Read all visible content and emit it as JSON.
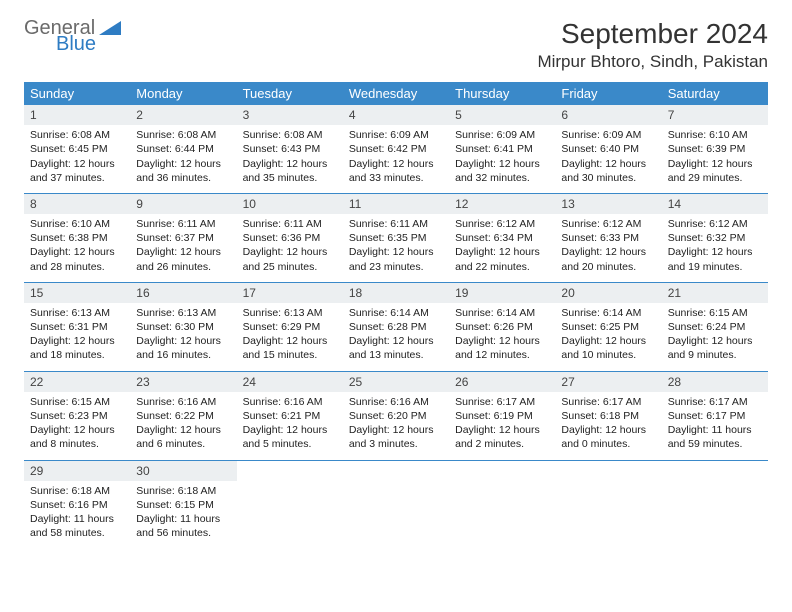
{
  "logo": {
    "text1": "General",
    "text2": "Blue"
  },
  "title": "September 2024",
  "location": "Mirpur Bhtoro, Sindh, Pakistan",
  "colors": {
    "header_bg": "#3a89c9",
    "header_fg": "#ffffff",
    "daynum_bg": "#eceff1",
    "rule": "#3a89c9",
    "logo_gray": "#6a6a6a",
    "logo_blue": "#2e7cc3"
  },
  "weekdays": [
    "Sunday",
    "Monday",
    "Tuesday",
    "Wednesday",
    "Thursday",
    "Friday",
    "Saturday"
  ],
  "weeks": [
    [
      {
        "n": "1",
        "sunrise": "6:08 AM",
        "sunset": "6:45 PM",
        "daylight": "12 hours and 37 minutes."
      },
      {
        "n": "2",
        "sunrise": "6:08 AM",
        "sunset": "6:44 PM",
        "daylight": "12 hours and 36 minutes."
      },
      {
        "n": "3",
        "sunrise": "6:08 AM",
        "sunset": "6:43 PM",
        "daylight": "12 hours and 35 minutes."
      },
      {
        "n": "4",
        "sunrise": "6:09 AM",
        "sunset": "6:42 PM",
        "daylight": "12 hours and 33 minutes."
      },
      {
        "n": "5",
        "sunrise": "6:09 AM",
        "sunset": "6:41 PM",
        "daylight": "12 hours and 32 minutes."
      },
      {
        "n": "6",
        "sunrise": "6:09 AM",
        "sunset": "6:40 PM",
        "daylight": "12 hours and 30 minutes."
      },
      {
        "n": "7",
        "sunrise": "6:10 AM",
        "sunset": "6:39 PM",
        "daylight": "12 hours and 29 minutes."
      }
    ],
    [
      {
        "n": "8",
        "sunrise": "6:10 AM",
        "sunset": "6:38 PM",
        "daylight": "12 hours and 28 minutes."
      },
      {
        "n": "9",
        "sunrise": "6:11 AM",
        "sunset": "6:37 PM",
        "daylight": "12 hours and 26 minutes."
      },
      {
        "n": "10",
        "sunrise": "6:11 AM",
        "sunset": "6:36 PM",
        "daylight": "12 hours and 25 minutes."
      },
      {
        "n": "11",
        "sunrise": "6:11 AM",
        "sunset": "6:35 PM",
        "daylight": "12 hours and 23 minutes."
      },
      {
        "n": "12",
        "sunrise": "6:12 AM",
        "sunset": "6:34 PM",
        "daylight": "12 hours and 22 minutes."
      },
      {
        "n": "13",
        "sunrise": "6:12 AM",
        "sunset": "6:33 PM",
        "daylight": "12 hours and 20 minutes."
      },
      {
        "n": "14",
        "sunrise": "6:12 AM",
        "sunset": "6:32 PM",
        "daylight": "12 hours and 19 minutes."
      }
    ],
    [
      {
        "n": "15",
        "sunrise": "6:13 AM",
        "sunset": "6:31 PM",
        "daylight": "12 hours and 18 minutes."
      },
      {
        "n": "16",
        "sunrise": "6:13 AM",
        "sunset": "6:30 PM",
        "daylight": "12 hours and 16 minutes."
      },
      {
        "n": "17",
        "sunrise": "6:13 AM",
        "sunset": "6:29 PM",
        "daylight": "12 hours and 15 minutes."
      },
      {
        "n": "18",
        "sunrise": "6:14 AM",
        "sunset": "6:28 PM",
        "daylight": "12 hours and 13 minutes."
      },
      {
        "n": "19",
        "sunrise": "6:14 AM",
        "sunset": "6:26 PM",
        "daylight": "12 hours and 12 minutes."
      },
      {
        "n": "20",
        "sunrise": "6:14 AM",
        "sunset": "6:25 PM",
        "daylight": "12 hours and 10 minutes."
      },
      {
        "n": "21",
        "sunrise": "6:15 AM",
        "sunset": "6:24 PM",
        "daylight": "12 hours and 9 minutes."
      }
    ],
    [
      {
        "n": "22",
        "sunrise": "6:15 AM",
        "sunset": "6:23 PM",
        "daylight": "12 hours and 8 minutes."
      },
      {
        "n": "23",
        "sunrise": "6:16 AM",
        "sunset": "6:22 PM",
        "daylight": "12 hours and 6 minutes."
      },
      {
        "n": "24",
        "sunrise": "6:16 AM",
        "sunset": "6:21 PM",
        "daylight": "12 hours and 5 minutes."
      },
      {
        "n": "25",
        "sunrise": "6:16 AM",
        "sunset": "6:20 PM",
        "daylight": "12 hours and 3 minutes."
      },
      {
        "n": "26",
        "sunrise": "6:17 AM",
        "sunset": "6:19 PM",
        "daylight": "12 hours and 2 minutes."
      },
      {
        "n": "27",
        "sunrise": "6:17 AM",
        "sunset": "6:18 PM",
        "daylight": "12 hours and 0 minutes."
      },
      {
        "n": "28",
        "sunrise": "6:17 AM",
        "sunset": "6:17 PM",
        "daylight": "11 hours and 59 minutes."
      }
    ],
    [
      {
        "n": "29",
        "sunrise": "6:18 AM",
        "sunset": "6:16 PM",
        "daylight": "11 hours and 58 minutes."
      },
      {
        "n": "30",
        "sunrise": "6:18 AM",
        "sunset": "6:15 PM",
        "daylight": "11 hours and 56 minutes."
      },
      null,
      null,
      null,
      null,
      null
    ]
  ],
  "labels": {
    "sunrise": "Sunrise:",
    "sunset": "Sunset:",
    "daylight": "Daylight:"
  }
}
